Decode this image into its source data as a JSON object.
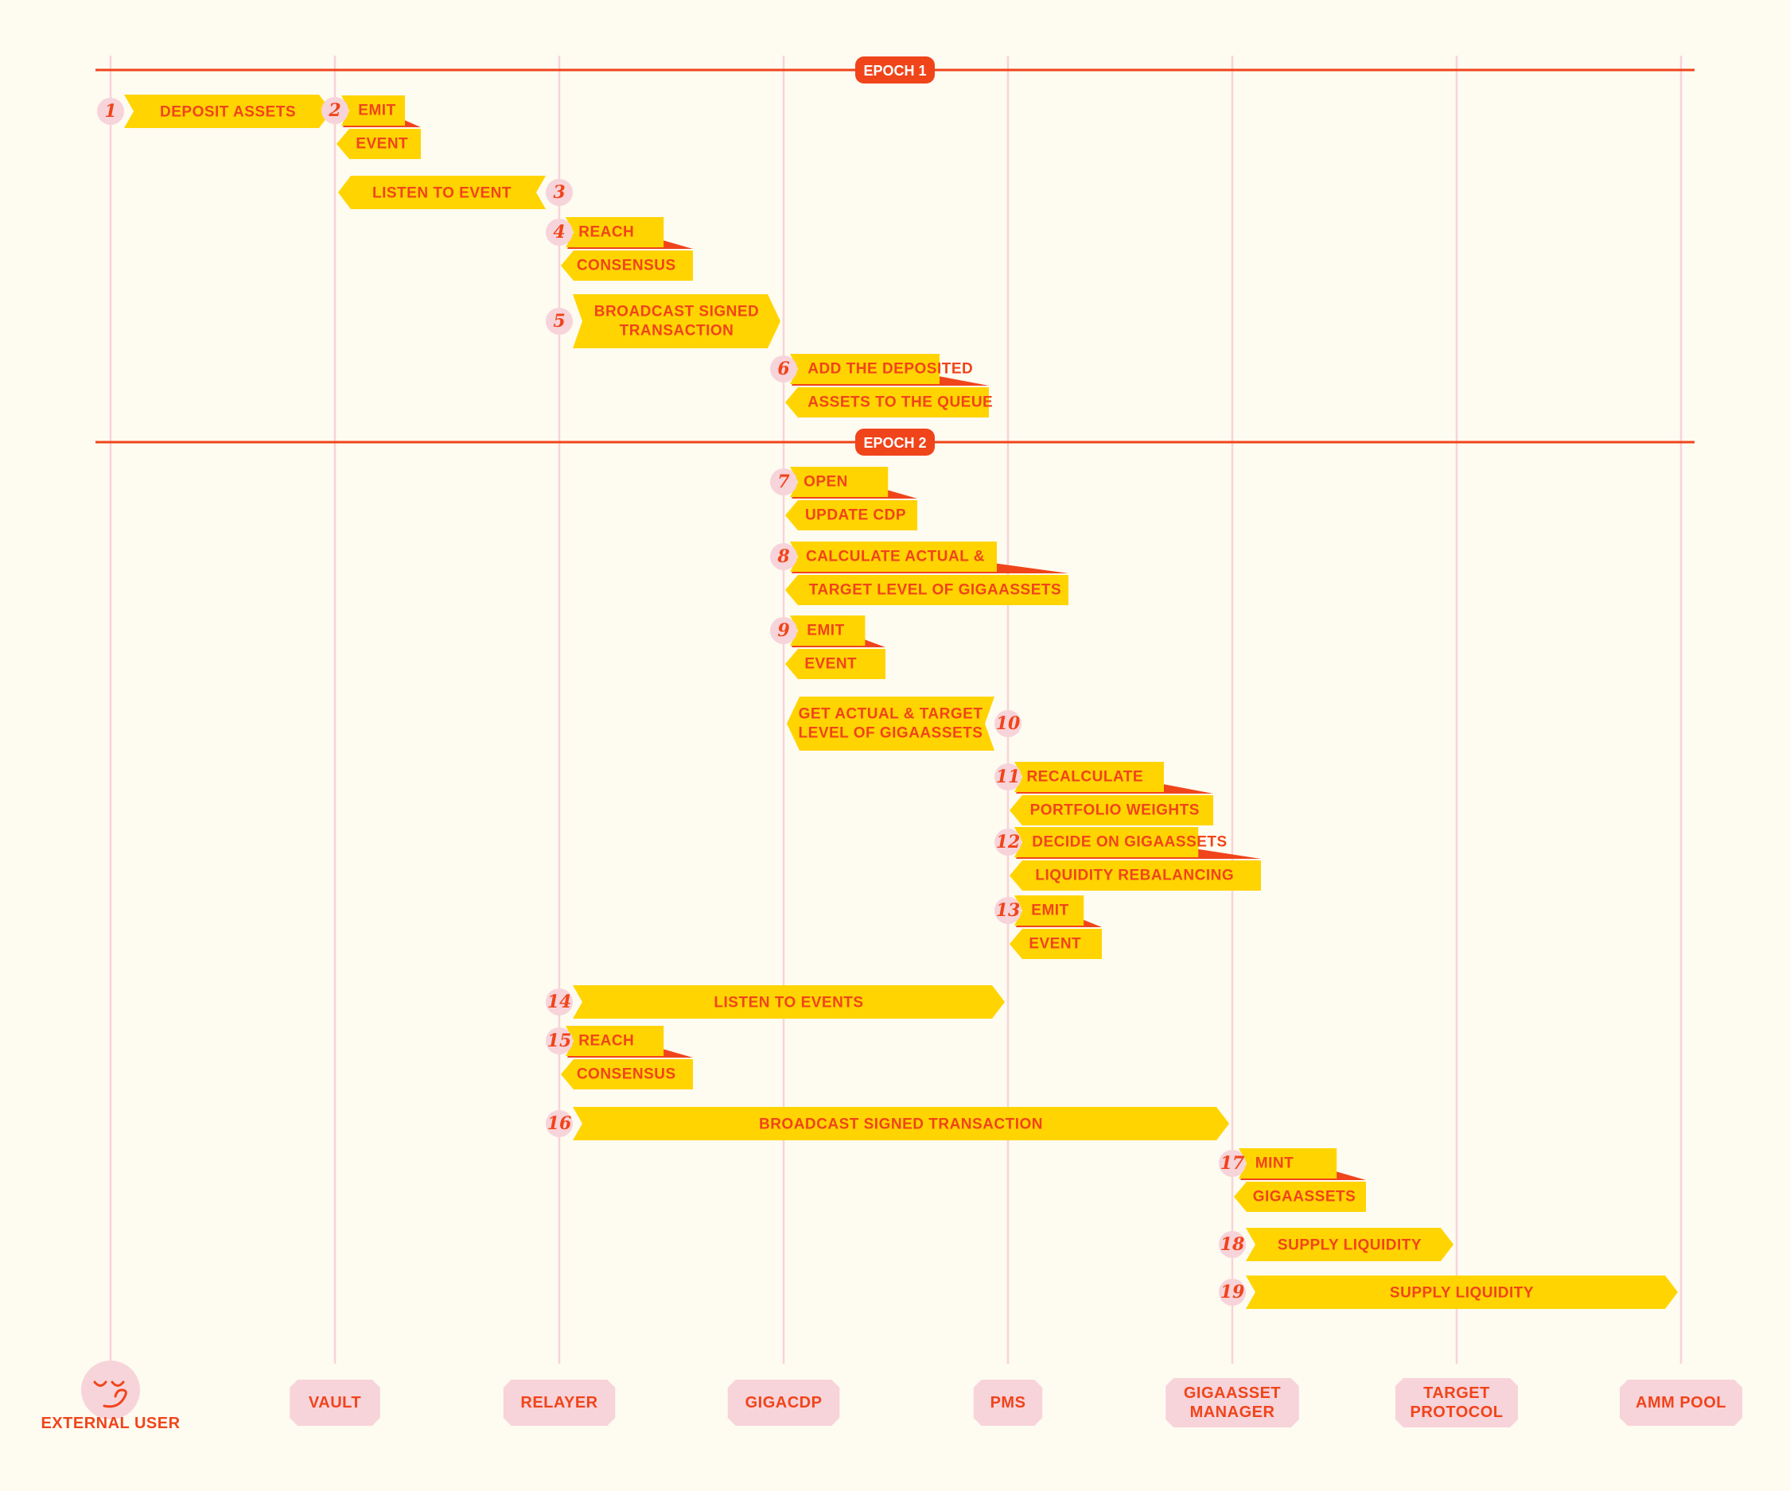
{
  "epochs": [
    {
      "label": "EPOCH 1"
    },
    {
      "label": "EPOCH 2"
    }
  ],
  "actors": [
    {
      "label": "EXTERNAL USER",
      "icon": "smiley-face-icon"
    },
    {
      "label": "VAULT"
    },
    {
      "label": "RELAYER"
    },
    {
      "label": "GIGACDP"
    },
    {
      "label": "PMS"
    },
    {
      "label": "GIGAASSET MANAGER"
    },
    {
      "label": "TARGET PROTOCOL"
    },
    {
      "label": "AMM POOL"
    }
  ],
  "steps": [
    {
      "num": "1",
      "kind": "arrow",
      "from": 0,
      "to": 1,
      "text": "DEPOSIT ASSETS"
    },
    {
      "num": "2",
      "kind": "self",
      "actor": 1,
      "line1": "EMIT",
      "line2": "EVENT"
    },
    {
      "num": "3",
      "kind": "arrow",
      "from": 2,
      "to": 1,
      "text": "LISTEN TO EVENT"
    },
    {
      "num": "4",
      "kind": "self",
      "actor": 2,
      "line1": "REACH",
      "line2": "CONSENSUS"
    },
    {
      "num": "5",
      "kind": "arrow",
      "from": 2,
      "to": 3,
      "text": "BROADCAST SIGNED TRANSACTION"
    },
    {
      "num": "6",
      "kind": "self",
      "actor": 3,
      "line1": "ADD THE DEPOSITED",
      "line2": "ASSETS TO THE QUEUE"
    },
    {
      "num": "7",
      "kind": "self",
      "actor": 3,
      "line1": "OPEN",
      "line2": "UPDATE CDP"
    },
    {
      "num": "8",
      "kind": "self",
      "actor": 3,
      "line1": "CALCULATE ACTUAL &",
      "line2": "TARGET LEVEL OF GIGAASSETS"
    },
    {
      "num": "9",
      "kind": "self",
      "actor": 3,
      "line1": "EMIT",
      "line2": "EVENT"
    },
    {
      "num": "10",
      "kind": "arrow",
      "from": 4,
      "to": 3,
      "text": "GET ACTUAL & TARGET LEVEL OF GIGAASSETS"
    },
    {
      "num": "11",
      "kind": "self",
      "actor": 4,
      "line1": "RECALCULATE",
      "line2": "PORTFOLIO WEIGHTS"
    },
    {
      "num": "12",
      "kind": "self",
      "actor": 4,
      "line1": "DECIDE ON GIGAASSETS",
      "line2": "LIQUIDITY REBALANCING"
    },
    {
      "num": "13",
      "kind": "self",
      "actor": 4,
      "line1": "EMIT",
      "line2": "EVENT"
    },
    {
      "num": "14",
      "kind": "arrow",
      "from": 2,
      "to": 4,
      "text": "LISTEN TO EVENTS"
    },
    {
      "num": "15",
      "kind": "self",
      "actor": 2,
      "line1": "REACH",
      "line2": "CONSENSUS"
    },
    {
      "num": "16",
      "kind": "arrow",
      "from": 2,
      "to": 5,
      "text": "BROADCAST SIGNED TRANSACTION"
    },
    {
      "num": "17",
      "kind": "self",
      "actor": 5,
      "line1": "MINT",
      "line2": "GIGAASSETS"
    },
    {
      "num": "18",
      "kind": "arrow",
      "from": 5,
      "to": 6,
      "text": "SUPPLY LIQUIDITY"
    },
    {
      "num": "19",
      "kind": "arrow",
      "from": 5,
      "to": 7,
      "text": "SUPPLY LIQUIDITY"
    }
  ],
  "colors": {
    "background": "#FEFBF1",
    "lifeline": "#F7D3DA",
    "accent_red": "#F0441A",
    "arrow_yellow": "#FFD400",
    "badge_pink": "#F7D3DA",
    "label_text": "#F0441A"
  }
}
